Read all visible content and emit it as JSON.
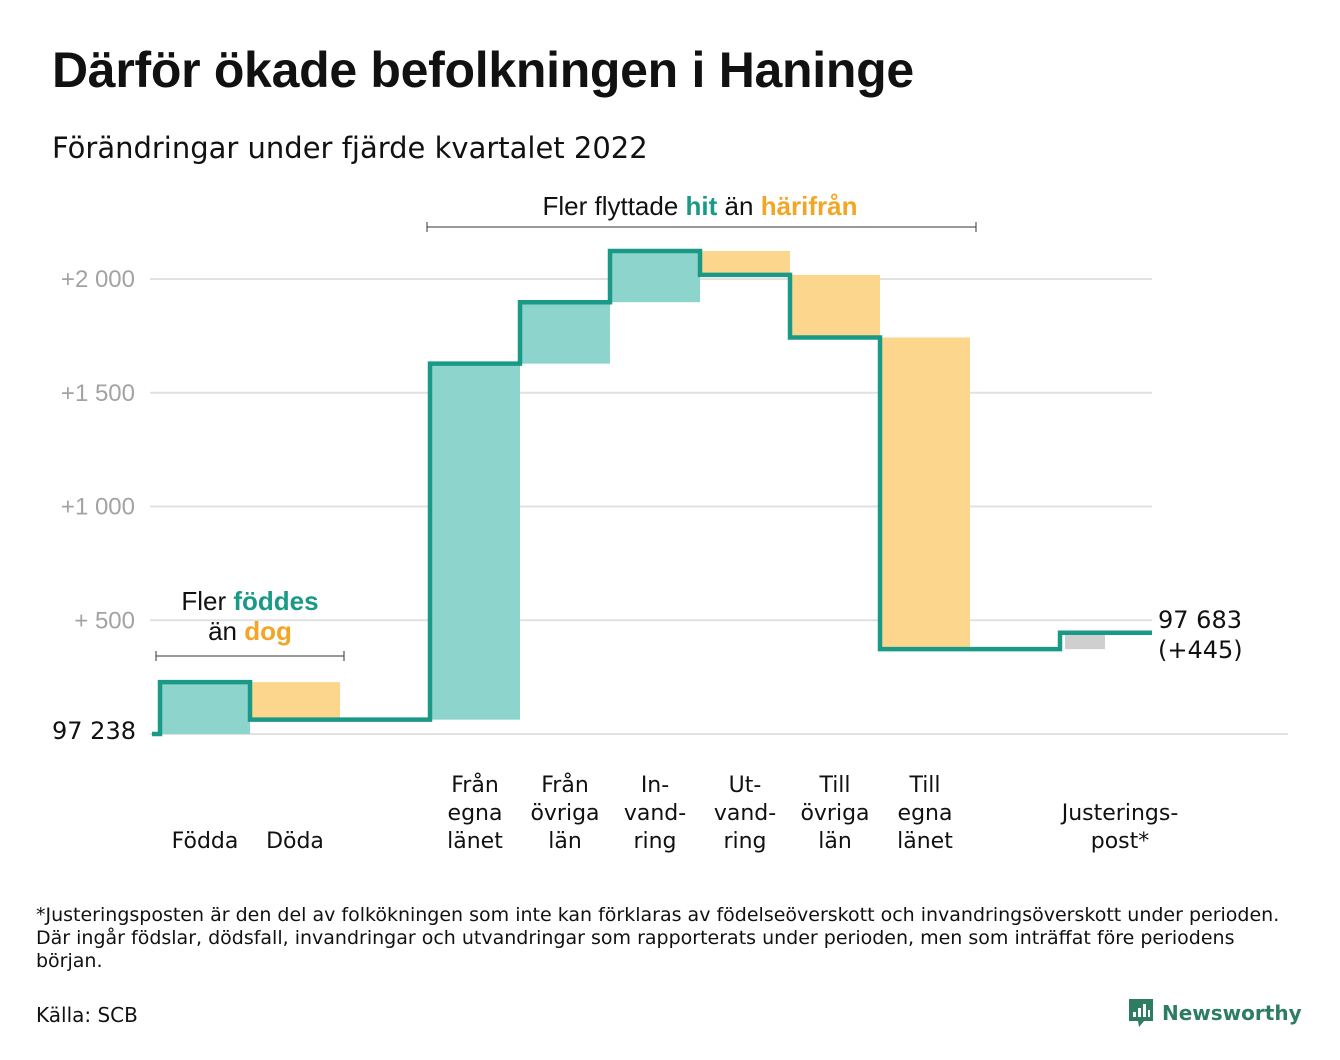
{
  "title": "Därför ökade befolkningen i Haninge",
  "subtitle": "Förändringar under fjärde kvartalet 2022",
  "footnote": "*Justeringsposten är den del av folkökningen som inte kan förklaras av födelseöverskott och invandringsöverskott under perioden. Där ingår födslar, dödsfall, invandringar och utvandringar som rapporterats under perioden, men som inträffat före periodens början.",
  "source": "Källa: SCB",
  "brand": {
    "name": "Newsworthy",
    "icon": "newsworthy-logo-icon",
    "color": "#2e7d63"
  },
  "annotations": {
    "natural": {
      "pre1": "Fler ",
      "hl1": "föddes",
      "pre2": "än ",
      "hl2": "dog"
    },
    "migration": {
      "pre1": "Fler flyttade ",
      "hl1": "hit",
      "mid": " än ",
      "hl2": "härifrån"
    }
  },
  "colors": {
    "line": "#1a9a86",
    "increase": "#8dd5cc",
    "decrease": "#fbd68c",
    "adjustment": "#cfcfcf",
    "grid": "#e1e1e1",
    "highlight_teal": "#1a9a86",
    "highlight_orange": "#f3a524"
  },
  "chart_data": {
    "type": "waterfall",
    "title": "Därför ökade befolkningen i Haninge",
    "subtitle": "Förändringar under fjärde kvartalet 2022",
    "start_value": 97238,
    "start_label": "97 238",
    "end_value": 97683,
    "end_label": "97 683",
    "end_change_label": "(+445)",
    "y_axis": {
      "unit": "change from start",
      "ylim": [
        0,
        2150
      ],
      "ticks": [
        500,
        1000,
        1500,
        2000
      ],
      "tick_labels": [
        "+ 500",
        "+1 000",
        "+1 500",
        "+2 000"
      ],
      "grid": true
    },
    "steps": [
      {
        "label": "Födda",
        "label_lines": [
          "Födda"
        ],
        "change": 228,
        "kind": "increase"
      },
      {
        "label": "Döda",
        "label_lines": [
          "Döda"
        ],
        "change": -165,
        "kind": "decrease"
      },
      {
        "label": "",
        "label_lines": [],
        "change": 0,
        "kind": "gap"
      },
      {
        "label": "Från egna länet",
        "label_lines": [
          "Från",
          "egna",
          "länet"
        ],
        "change": 1565,
        "kind": "increase"
      },
      {
        "label": "Från övriga län",
        "label_lines": [
          "Från",
          "övriga",
          "län"
        ],
        "change": 270,
        "kind": "increase"
      },
      {
        "label": "In-vand-ring",
        "label_lines": [
          "In-",
          "vand-",
          "ring"
        ],
        "change": 225,
        "kind": "increase"
      },
      {
        "label": "Ut-vand-ring",
        "label_lines": [
          "Ut-",
          "vand-",
          "ring"
        ],
        "change": -105,
        "kind": "decrease"
      },
      {
        "label": "Till övriga län",
        "label_lines": [
          "Till",
          "övriga",
          "län"
        ],
        "change": -275,
        "kind": "decrease"
      },
      {
        "label": "Till egna länet",
        "label_lines": [
          "Till",
          "egna",
          "länet"
        ],
        "change": -1370,
        "kind": "decrease"
      },
      {
        "label": "",
        "label_lines": [],
        "change": 0,
        "kind": "gap"
      },
      {
        "label": "Justerings-post*",
        "label_lines": [
          "Justerings-",
          "post*"
        ],
        "change": 72,
        "kind": "adjustment"
      }
    ]
  }
}
